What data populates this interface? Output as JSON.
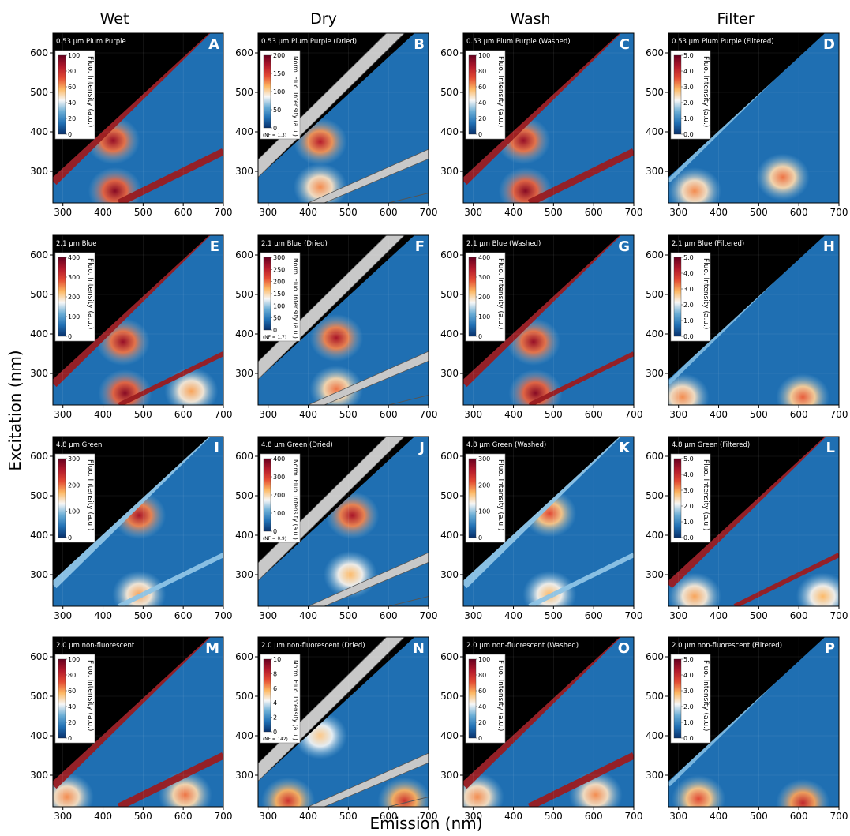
{
  "figure": {
    "column_titles": [
      "Wet",
      "Dry",
      "Wash",
      "Filter"
    ],
    "xlabel": "Emission (nm)",
    "ylabel": "Excitation (nm)",
    "x_ticks": [
      300,
      400,
      500,
      600,
      700
    ],
    "y_ticks": [
      300,
      400,
      500,
      600
    ],
    "xlim": [
      275,
      700
    ],
    "ylim": [
      220,
      650
    ]
  },
  "colors": {
    "background_level": "#1f6fb2",
    "mask_black": "#000000",
    "scatter_mask_gray": "#c8c8c8",
    "colormap": [
      "#08306b",
      "#2171b5",
      "#6baed6",
      "#f7f7f7",
      "#fdb863",
      "#e34a33",
      "#b2182b",
      "#67001f"
    ]
  },
  "chart_data": [
    {
      "letter": "A",
      "title": "0.53 µm Plum Purple",
      "type": "heatmap",
      "colorbar_label": "Fluo. Intensity (a.u.)",
      "colorbar_ticks": [
        "0",
        "20",
        "40",
        "60",
        "80",
        "100"
      ],
      "nf_note": "",
      "masked_scatter": false,
      "features": [
        {
          "em": 425,
          "ex": 378,
          "level": 0.9
        },
        {
          "em": 430,
          "ex": 250,
          "level": 0.95
        }
      ],
      "diagonals": [
        "first",
        "second"
      ]
    },
    {
      "letter": "B",
      "title": "0.53 µm Plum Purple (Dried)",
      "type": "heatmap",
      "colorbar_label": "Norm. Fluo. Intensity (a.u.)",
      "colorbar_ticks": [
        "0",
        "50",
        "100",
        "150",
        "200"
      ],
      "nf_note": "(NF = 1.3)",
      "masked_scatter": true,
      "features": [
        {
          "em": 430,
          "ex": 375,
          "level": 0.8
        },
        {
          "em": 430,
          "ex": 260,
          "level": 0.45
        }
      ],
      "diagonals": []
    },
    {
      "letter": "C",
      "title": "0.53 µm Plum Purple (Washed)",
      "type": "heatmap",
      "colorbar_label": "Fluo. Intensity (a.u.)",
      "colorbar_ticks": [
        "0",
        "20",
        "40",
        "60",
        "80",
        "100"
      ],
      "nf_note": "",
      "masked_scatter": false,
      "features": [
        {
          "em": 425,
          "ex": 378,
          "level": 0.9
        },
        {
          "em": 430,
          "ex": 250,
          "level": 0.95
        }
      ],
      "diagonals": [
        "first",
        "second"
      ]
    },
    {
      "letter": "D",
      "title": "0.53 µm Plum Purple (Filtered)",
      "type": "heatmap",
      "colorbar_label": "Fluo. Intensity (a.u.)",
      "colorbar_ticks": [
        "0.0",
        "1.0",
        "2.0",
        "3.0",
        "4.0",
        "5.0"
      ],
      "nf_note": "",
      "masked_scatter": false,
      "features": [
        {
          "em": 340,
          "ex": 250,
          "level": 0.45
        },
        {
          "em": 560,
          "ex": 285,
          "level": 0.5
        }
      ],
      "diagonals": [
        "first-faint"
      ]
    },
    {
      "letter": "E",
      "title": "2.1 µm Blue",
      "type": "heatmap",
      "colorbar_label": "Fluo. Intensity (a.u.)",
      "colorbar_ticks": [
        "0",
        "100",
        "200",
        "300",
        "400"
      ],
      "nf_note": "",
      "masked_scatter": false,
      "features": [
        {
          "em": 450,
          "ex": 380,
          "level": 0.9
        },
        {
          "em": 455,
          "ex": 250,
          "level": 0.95
        },
        {
          "em": 620,
          "ex": 255,
          "level": 0.4
        }
      ],
      "diagonals": [
        "first",
        "second-thin"
      ]
    },
    {
      "letter": "F",
      "title": "2.1 µm Blue (Dried)",
      "type": "heatmap",
      "colorbar_label": "Norm. Fluo. Intensity (a.u.)",
      "colorbar_ticks": [
        "0",
        "50",
        "100",
        "150",
        "200",
        "250",
        "300"
      ],
      "nf_note": "(NF = 1.7)",
      "masked_scatter": true,
      "features": [
        {
          "em": 470,
          "ex": 390,
          "level": 0.85
        },
        {
          "em": 470,
          "ex": 260,
          "level": 0.5
        }
      ],
      "diagonals": []
    },
    {
      "letter": "G",
      "title": "2.1 µm Blue (Washed)",
      "type": "heatmap",
      "colorbar_label": "Fluo. Intensity (a.u.)",
      "colorbar_ticks": [
        "0",
        "100",
        "200",
        "300",
        "400"
      ],
      "nf_note": "",
      "masked_scatter": false,
      "features": [
        {
          "em": 450,
          "ex": 380,
          "level": 0.9
        },
        {
          "em": 455,
          "ex": 250,
          "level": 0.95
        }
      ],
      "diagonals": [
        "first",
        "second-thin"
      ]
    },
    {
      "letter": "H",
      "title": "2.1 µm Blue (Filtered)",
      "type": "heatmap",
      "colorbar_label": "Fluo. Intensity (a.u.)",
      "colorbar_ticks": [
        "0.0",
        "1.0",
        "2.0",
        "3.0",
        "4.0",
        "5.0"
      ],
      "nf_note": "",
      "masked_scatter": false,
      "features": [
        {
          "em": 310,
          "ex": 240,
          "level": 0.45
        },
        {
          "em": 610,
          "ex": 240,
          "level": 0.55
        }
      ],
      "diagonals": [
        "first-faint"
      ]
    },
    {
      "letter": "I",
      "title": "4.8 µm Green",
      "type": "heatmap",
      "colorbar_label": "Fluo. Intensity (a.u.)",
      "colorbar_ticks": [
        "0",
        "100",
        "200",
        "300"
      ],
      "nf_note": "",
      "masked_scatter": false,
      "features": [
        {
          "em": 490,
          "ex": 450,
          "level": 0.85
        },
        {
          "em": 490,
          "ex": 250,
          "level": 0.4
        }
      ],
      "diagonals": [
        "first-light",
        "second-thin-light"
      ]
    },
    {
      "letter": "J",
      "title": "4.8 µm Green (Dried)",
      "type": "heatmap",
      "colorbar_label": "Norm. Fluo. Intensity (a.u.)",
      "colorbar_ticks": [
        "0",
        "100",
        "200",
        "300",
        "400"
      ],
      "nf_note": "(NF = 0.9)",
      "masked_scatter": true,
      "features": [
        {
          "em": 510,
          "ex": 450,
          "level": 0.85
        },
        {
          "em": 505,
          "ex": 300,
          "level": 0.35
        }
      ],
      "diagonals": []
    },
    {
      "letter": "K",
      "title": "4.8 µm Green (Washed)",
      "type": "heatmap",
      "colorbar_label": "Fluo. Intensity (a.u.)",
      "colorbar_ticks": [
        "0",
        "100",
        "200",
        "300"
      ],
      "nf_note": "",
      "masked_scatter": false,
      "features": [
        {
          "em": 490,
          "ex": 455,
          "level": 0.6
        },
        {
          "em": 490,
          "ex": 250,
          "level": 0.35
        }
      ],
      "diagonals": [
        "first-light",
        "second-thin-light"
      ]
    },
    {
      "letter": "L",
      "title": "4.8 µm Green (Filtered)",
      "type": "heatmap",
      "colorbar_label": "Fluo. Intensity (a.u.)",
      "colorbar_ticks": [
        "0.0",
        "1.0",
        "2.0",
        "3.0",
        "4.0",
        "5.0"
      ],
      "nf_note": "",
      "masked_scatter": false,
      "features": [
        {
          "em": 340,
          "ex": 245,
          "level": 0.4
        },
        {
          "em": 660,
          "ex": 245,
          "level": 0.35
        }
      ],
      "diagonals": [
        "first",
        "second-thin"
      ]
    },
    {
      "letter": "M",
      "title": "2.0 µm non-fluorescent",
      "type": "heatmap",
      "colorbar_label": "Fluo. Intensity (a.u.)",
      "colorbar_ticks": [
        "0",
        "20",
        "40",
        "60",
        "80",
        "100"
      ],
      "nf_note": "",
      "masked_scatter": false,
      "features": [
        {
          "em": 310,
          "ex": 245,
          "level": 0.45
        },
        {
          "em": 605,
          "ex": 250,
          "level": 0.5
        }
      ],
      "diagonals": [
        "first",
        "second"
      ]
    },
    {
      "letter": "N",
      "title": "2.0 µm non-fluorescent (Dried)",
      "type": "heatmap",
      "colorbar_label": "Norm. Fluo. Intensity (a.u.)",
      "colorbar_ticks": [
        "0",
        "2",
        "4",
        "6",
        "8",
        "10"
      ],
      "nf_note": "(NF = 142)",
      "masked_scatter": true,
      "features": [
        {
          "em": 350,
          "ex": 235,
          "level": 0.7
        },
        {
          "em": 640,
          "ex": 235,
          "level": 0.7
        },
        {
          "em": 430,
          "ex": 400,
          "level": 0.3
        }
      ],
      "diagonals": []
    },
    {
      "letter": "O",
      "title": "2.0 µm non-fluorescent (Washed)",
      "type": "heatmap",
      "colorbar_label": "Fluo. Intensity (a.u.)",
      "colorbar_ticks": [
        "0",
        "20",
        "40",
        "60",
        "80",
        "100"
      ],
      "nf_note": "",
      "masked_scatter": false,
      "features": [
        {
          "em": 310,
          "ex": 245,
          "level": 0.45
        },
        {
          "em": 605,
          "ex": 250,
          "level": 0.45
        }
      ],
      "diagonals": [
        "first",
        "second"
      ]
    },
    {
      "letter": "P",
      "title": "2.0 µm non-fluorescent (Filtered)",
      "type": "heatmap",
      "colorbar_label": "Fluo. Intensity (a.u.)",
      "colorbar_ticks": [
        "0.0",
        "1.0",
        "2.0",
        "3.0",
        "4.0",
        "5.0"
      ],
      "nf_note": "",
      "masked_scatter": false,
      "features": [
        {
          "em": 350,
          "ex": 240,
          "level": 0.6
        },
        {
          "em": 610,
          "ex": 230,
          "level": 0.75
        }
      ],
      "diagonals": [
        "first-faint"
      ]
    }
  ]
}
